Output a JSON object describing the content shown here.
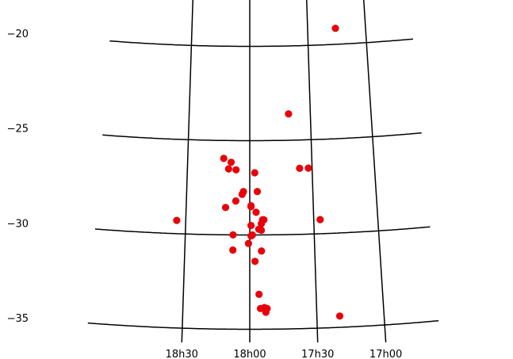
{
  "chart_data": {
    "type": "scatter",
    "title": "",
    "xlabel": "",
    "ylabel": "",
    "projection": "sky map with curved grid",
    "x_unit": "right ascension",
    "y_unit": "declination (deg)",
    "xlim": [
      "18h50",
      "16h55"
    ],
    "ylim": [
      -35.5,
      -18.5
    ],
    "grid": true,
    "x_ticks": [
      {
        "label": "18h30",
        "ra_hours": 18.5
      },
      {
        "label": "18h00",
        "ra_hours": 18.0
      },
      {
        "label": "17h30",
        "ra_hours": 17.5
      },
      {
        "label": "17h00",
        "ra_hours": 17.0
      }
    ],
    "y_ticks": [
      {
        "label": "−20",
        "dec": -20
      },
      {
        "label": "−25",
        "dec": -25
      },
      {
        "label": "−30",
        "dec": -30
      },
      {
        "label": "−35",
        "dec": -35
      }
    ],
    "marker_color": "#e8000b",
    "grid_color": "#000000",
    "series": [
      {
        "points": [
          {
            "ra_hours": 17.26,
            "dec": -19.15
          },
          {
            "ra_hours": 17.68,
            "dec": -23.6
          },
          {
            "ra_hours": 17.6,
            "dec": -26.5
          },
          {
            "ra_hours": 17.53,
            "dec": -26.5
          },
          {
            "ra_hours": 18.21,
            "dec": -25.95
          },
          {
            "ra_hours": 18.15,
            "dec": -26.15
          },
          {
            "ra_hours": 18.17,
            "dec": -26.5
          },
          {
            "ra_hours": 18.11,
            "dec": -26.55
          },
          {
            "ra_hours": 17.96,
            "dec": -26.7
          },
          {
            "ra_hours": 17.94,
            "dec": -27.7
          },
          {
            "ra_hours": 18.05,
            "dec": -27.7
          },
          {
            "ra_hours": 18.06,
            "dec": -27.85
          },
          {
            "ra_hours": 18.11,
            "dec": -28.2
          },
          {
            "ra_hours": 18.19,
            "dec": -28.55
          },
          {
            "ra_hours": 17.99,
            "dec": -28.45
          },
          {
            "ra_hours": 17.99,
            "dec": -28.5
          },
          {
            "ra_hours": 17.95,
            "dec": -28.8
          },
          {
            "ra_hours": 17.9,
            "dec": -29.2
          },
          {
            "ra_hours": 17.89,
            "dec": -29.2
          },
          {
            "ra_hours": 17.91,
            "dec": -29.4
          },
          {
            "ra_hours": 17.99,
            "dec": -29.5
          },
          {
            "ra_hours": 17.93,
            "dec": -29.7
          },
          {
            "ra_hours": 17.91,
            "dec": -29.75
          },
          {
            "ra_hours": 17.98,
            "dec": -30.0
          },
          {
            "ra_hours": 17.99,
            "dec": -30.05
          },
          {
            "ra_hours": 18.13,
            "dec": -30.0
          },
          {
            "ra_hours": 18.01,
            "dec": -30.45
          },
          {
            "ra_hours": 17.91,
            "dec": -30.85
          },
          {
            "ra_hours": 18.13,
            "dec": -30.8
          },
          {
            "ra_hours": 17.96,
            "dec": -31.4
          },
          {
            "ra_hours": 17.93,
            "dec": -33.15
          },
          {
            "ra_hours": 17.92,
            "dec": -33.9
          },
          {
            "ra_hours": 17.89,
            "dec": -33.85
          },
          {
            "ra_hours": 17.87,
            "dec": -33.9
          },
          {
            "ra_hours": 17.88,
            "dec": -34.1
          },
          {
            "ra_hours": 18.57,
            "dec": -29.3
          },
          {
            "ra_hours": 17.45,
            "dec": -29.25
          },
          {
            "ra_hours": 17.33,
            "dec": -34.4
          }
        ]
      }
    ]
  }
}
